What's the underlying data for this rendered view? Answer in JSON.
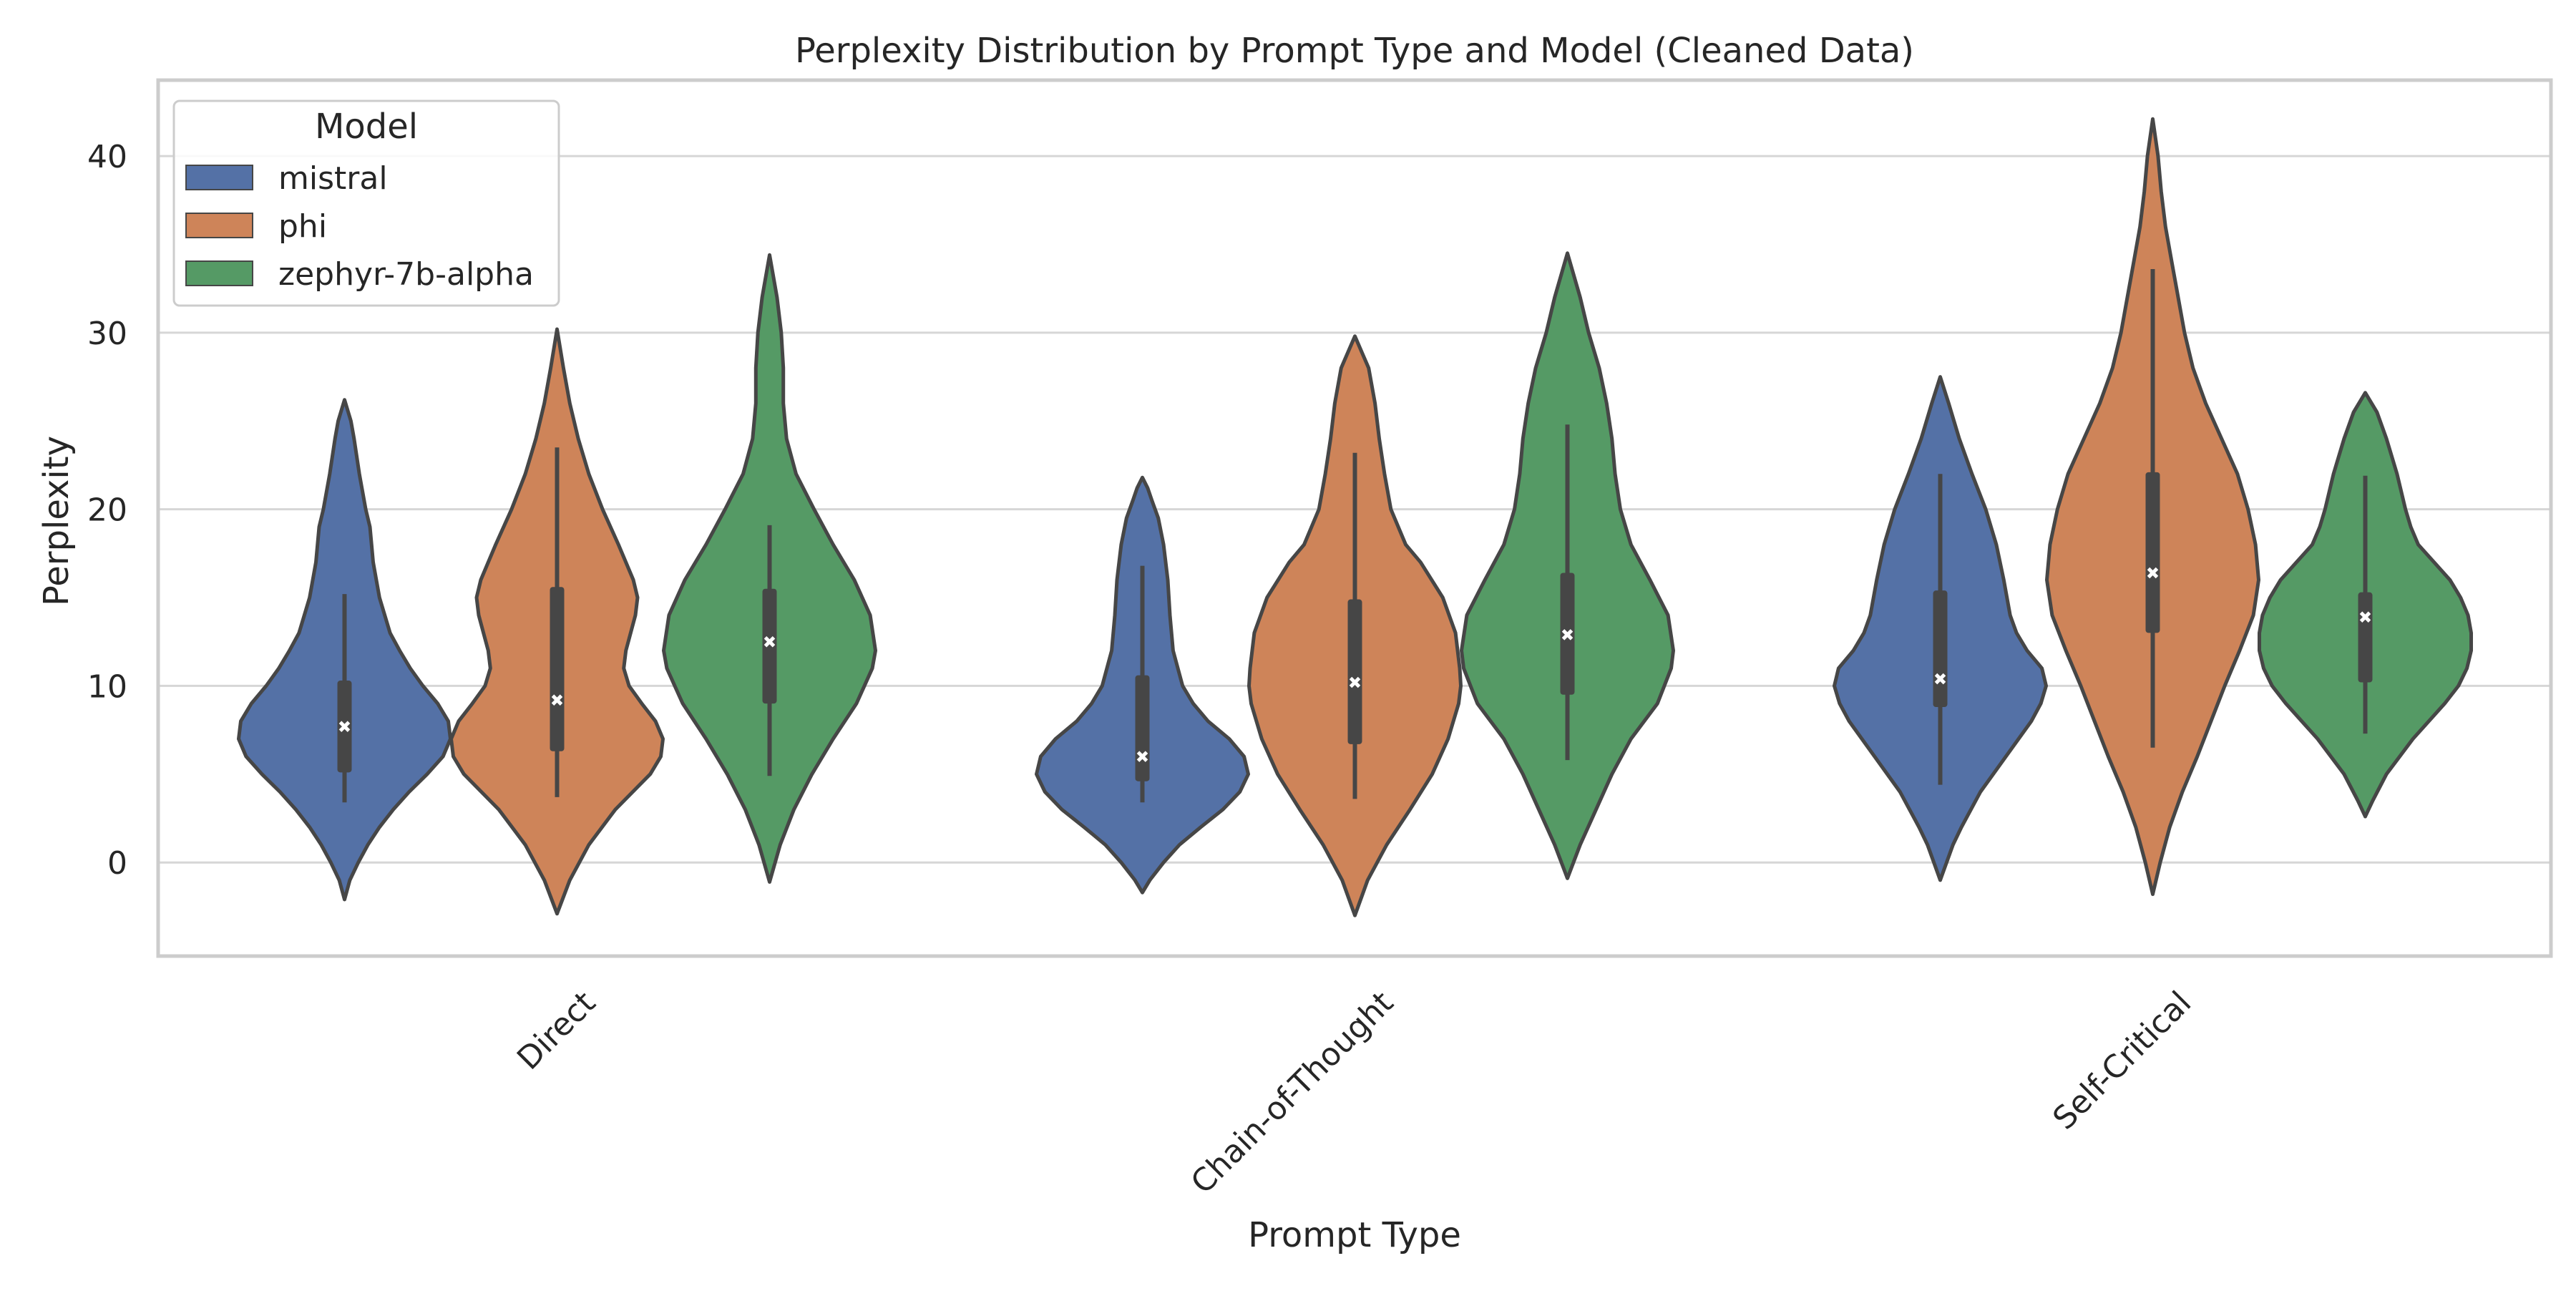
{
  "chart_data": {
    "type": "violin",
    "title": "Perplexity Distribution by Prompt Type and Model (Cleaned Data)",
    "xlabel": "Prompt Type",
    "ylabel": "Perplexity",
    "ylim": [
      -5.3,
      44.3
    ],
    "yticks": [
      0,
      10,
      20,
      30,
      40
    ],
    "categories": [
      "Direct",
      "Chain-of-Thought",
      "Self-Critical"
    ],
    "grid": true,
    "legend": {
      "title": "Model",
      "placement": "top-left"
    },
    "colors": {
      "mistral": "#5471a6",
      "phi": "#ce8459",
      "zephyr-7b-alpha": "#559a65",
      "edge": "#464646",
      "grid": "#d6d6d6",
      "frame": "#cccccc"
    },
    "series": [
      {
        "name": "mistral",
        "color": "#5471a6",
        "violins": [
          {
            "category": "Direct",
            "median": 7.7,
            "q1": 5.1,
            "q3": 10.3,
            "whisker_low": 3.4,
            "whisker_high": 15.2,
            "density": [
              [
                -2.1,
                0
              ],
              [
                -1.0,
                0.05
              ],
              [
                0,
                0.13
              ],
              [
                1,
                0.22
              ],
              [
                2,
                0.33
              ],
              [
                3,
                0.46
              ],
              [
                4,
                0.61
              ],
              [
                5,
                0.78
              ],
              [
                6,
                0.93
              ],
              [
                7,
                1.0
              ],
              [
                8,
                0.98
              ],
              [
                9,
                0.88
              ],
              [
                10,
                0.74
              ],
              [
                11,
                0.62
              ],
              [
                12,
                0.52
              ],
              [
                13,
                0.43
              ],
              [
                15,
                0.33
              ],
              [
                17,
                0.27
              ],
              [
                19,
                0.24
              ],
              [
                20,
                0.2
              ],
              [
                22,
                0.14
              ],
              [
                24,
                0.09
              ],
              [
                25,
                0.06
              ],
              [
                26.2,
                0
              ]
            ]
          },
          {
            "category": "Chain-of-Thought",
            "median": 6.0,
            "q1": 4.6,
            "q3": 10.6,
            "whisker_low": 3.4,
            "whisker_high": 16.8,
            "density": [
              [
                -1.7,
                0
              ],
              [
                -1,
                0.07
              ],
              [
                0,
                0.2
              ],
              [
                1,
                0.35
              ],
              [
                2,
                0.55
              ],
              [
                3,
                0.76
              ],
              [
                4,
                0.92
              ],
              [
                5,
                1.0
              ],
              [
                6,
                0.96
              ],
              [
                7,
                0.82
              ],
              [
                8,
                0.62
              ],
              [
                9,
                0.48
              ],
              [
                10,
                0.38
              ],
              [
                12,
                0.29
              ],
              [
                14,
                0.26
              ],
              [
                16,
                0.24
              ],
              [
                18,
                0.2
              ],
              [
                19.5,
                0.15
              ],
              [
                20.5,
                0.09
              ],
              [
                21.2,
                0.05
              ],
              [
                21.8,
                0
              ]
            ]
          },
          {
            "category": "Self-Critical",
            "median": 10.4,
            "q1": 8.8,
            "q3": 15.4,
            "whisker_low": 4.4,
            "whisker_high": 22.0,
            "density": [
              [
                -1.0,
                0
              ],
              [
                0,
                0.06
              ],
              [
                1,
                0.12
              ],
              [
                2,
                0.2
              ],
              [
                4,
                0.38
              ],
              [
                6,
                0.62
              ],
              [
                8,
                0.86
              ],
              [
                9,
                0.95
              ],
              [
                10,
                1.0
              ],
              [
                11,
                0.96
              ],
              [
                12,
                0.82
              ],
              [
                13,
                0.72
              ],
              [
                14,
                0.66
              ],
              [
                16,
                0.6
              ],
              [
                18,
                0.53
              ],
              [
                20,
                0.43
              ],
              [
                22,
                0.3
              ],
              [
                24,
                0.18
              ],
              [
                26,
                0.08
              ],
              [
                27.5,
                0
              ]
            ]
          }
        ]
      },
      {
        "name": "phi",
        "color": "#ce8459",
        "violins": [
          {
            "category": "Direct",
            "median": 9.2,
            "q1": 6.3,
            "q3": 15.6,
            "whisker_low": 3.7,
            "whisker_high": 23.5,
            "density": [
              [
                -2.9,
                0
              ],
              [
                -1,
                0.12
              ],
              [
                1,
                0.3
              ],
              [
                3,
                0.55
              ],
              [
                5,
                0.88
              ],
              [
                6,
                0.98
              ],
              [
                7,
                1.0
              ],
              [
                8,
                0.93
              ],
              [
                9,
                0.8
              ],
              [
                10,
                0.68
              ],
              [
                11,
                0.63
              ],
              [
                12,
                0.65
              ],
              [
                14,
                0.74
              ],
              [
                15,
                0.76
              ],
              [
                16,
                0.72
              ],
              [
                18,
                0.58
              ],
              [
                20,
                0.43
              ],
              [
                22,
                0.3
              ],
              [
                24,
                0.2
              ],
              [
                26,
                0.12
              ],
              [
                28,
                0.06
              ],
              [
                30.2,
                0
              ]
            ]
          },
          {
            "category": "Chain-of-Thought",
            "median": 10.2,
            "q1": 6.7,
            "q3": 14.9,
            "whisker_low": 3.6,
            "whisker_high": 23.2,
            "density": [
              [
                -3.0,
                0
              ],
              [
                -1,
                0.12
              ],
              [
                1,
                0.3
              ],
              [
                3,
                0.52
              ],
              [
                5,
                0.73
              ],
              [
                7,
                0.88
              ],
              [
                9,
                0.98
              ],
              [
                10,
                1.0
              ],
              [
                11,
                0.99
              ],
              [
                13,
                0.95
              ],
              [
                15,
                0.83
              ],
              [
                17,
                0.62
              ],
              [
                18,
                0.48
              ],
              [
                20,
                0.34
              ],
              [
                22,
                0.28
              ],
              [
                24,
                0.23
              ],
              [
                26,
                0.19
              ],
              [
                28,
                0.13
              ],
              [
                29.8,
                0
              ]
            ]
          },
          {
            "category": "Self-Critical",
            "median": 16.4,
            "q1": 13.0,
            "q3": 22.1,
            "whisker_low": 6.5,
            "whisker_high": 33.6,
            "density": [
              [
                -1.8,
                0
              ],
              [
                0,
                0.07
              ],
              [
                2,
                0.16
              ],
              [
                4,
                0.28
              ],
              [
                6,
                0.42
              ],
              [
                8,
                0.55
              ],
              [
                10,
                0.68
              ],
              [
                12,
                0.82
              ],
              [
                14,
                0.95
              ],
              [
                16,
                1.0
              ],
              [
                18,
                0.97
              ],
              [
                20,
                0.9
              ],
              [
                22,
                0.8
              ],
              [
                24,
                0.65
              ],
              [
                26,
                0.5
              ],
              [
                28,
                0.38
              ],
              [
                30,
                0.3
              ],
              [
                32,
                0.24
              ],
              [
                34,
                0.18
              ],
              [
                36,
                0.12
              ],
              [
                38,
                0.08
              ],
              [
                40,
                0.05
              ],
              [
                42.1,
                0
              ]
            ]
          }
        ]
      },
      {
        "name": "zephyr-7b-alpha",
        "color": "#559a65",
        "violins": [
          {
            "category": "Direct",
            "median": 12.5,
            "q1": 9.0,
            "q3": 15.5,
            "whisker_low": 4.9,
            "whisker_high": 19.1,
            "density": [
              [
                -1.1,
                0
              ],
              [
                1,
                0.1
              ],
              [
                3,
                0.23
              ],
              [
                5,
                0.4
              ],
              [
                7,
                0.6
              ],
              [
                9,
                0.82
              ],
              [
                11,
                0.97
              ],
              [
                12,
                1.0
              ],
              [
                14,
                0.95
              ],
              [
                16,
                0.8
              ],
              [
                18,
                0.6
              ],
              [
                20,
                0.42
              ],
              [
                22,
                0.25
              ],
              [
                24,
                0.16
              ],
              [
                26,
                0.13
              ],
              [
                28,
                0.13
              ],
              [
                30,
                0.11
              ],
              [
                32,
                0.07
              ],
              [
                34.4,
                0
              ]
            ]
          },
          {
            "category": "Chain-of-Thought",
            "median": 12.9,
            "q1": 9.5,
            "q3": 16.4,
            "whisker_low": 5.8,
            "whisker_high": 24.8,
            "density": [
              [
                -0.9,
                0
              ],
              [
                1,
                0.12
              ],
              [
                3,
                0.27
              ],
              [
                5,
                0.42
              ],
              [
                7,
                0.6
              ],
              [
                9,
                0.85
              ],
              [
                11,
                0.98
              ],
              [
                12,
                1.0
              ],
              [
                14,
                0.95
              ],
              [
                16,
                0.78
              ],
              [
                18,
                0.6
              ],
              [
                20,
                0.5
              ],
              [
                22,
                0.45
              ],
              [
                24,
                0.42
              ],
              [
                26,
                0.37
              ],
              [
                28,
                0.3
              ],
              [
                30,
                0.2
              ],
              [
                32,
                0.12
              ],
              [
                34.5,
                0
              ]
            ]
          },
          {
            "category": "Self-Critical",
            "median": 13.9,
            "q1": 10.2,
            "q3": 15.3,
            "whisker_low": 7.3,
            "whisker_high": 21.9,
            "density": [
              [
                2.6,
                0
              ],
              [
                3.5,
                0.07
              ],
              [
                5,
                0.2
              ],
              [
                7,
                0.45
              ],
              [
                9,
                0.75
              ],
              [
                10,
                0.88
              ],
              [
                11,
                0.96
              ],
              [
                12,
                1.0
              ],
              [
                13,
                1.0
              ],
              [
                14,
                0.97
              ],
              [
                15,
                0.9
              ],
              [
                16,
                0.8
              ],
              [
                17,
                0.65
              ],
              [
                18,
                0.5
              ],
              [
                19,
                0.43
              ],
              [
                20,
                0.38
              ],
              [
                22,
                0.3
              ],
              [
                24,
                0.2
              ],
              [
                25.5,
                0.11
              ],
              [
                26.6,
                0
              ]
            ]
          }
        ]
      }
    ]
  }
}
